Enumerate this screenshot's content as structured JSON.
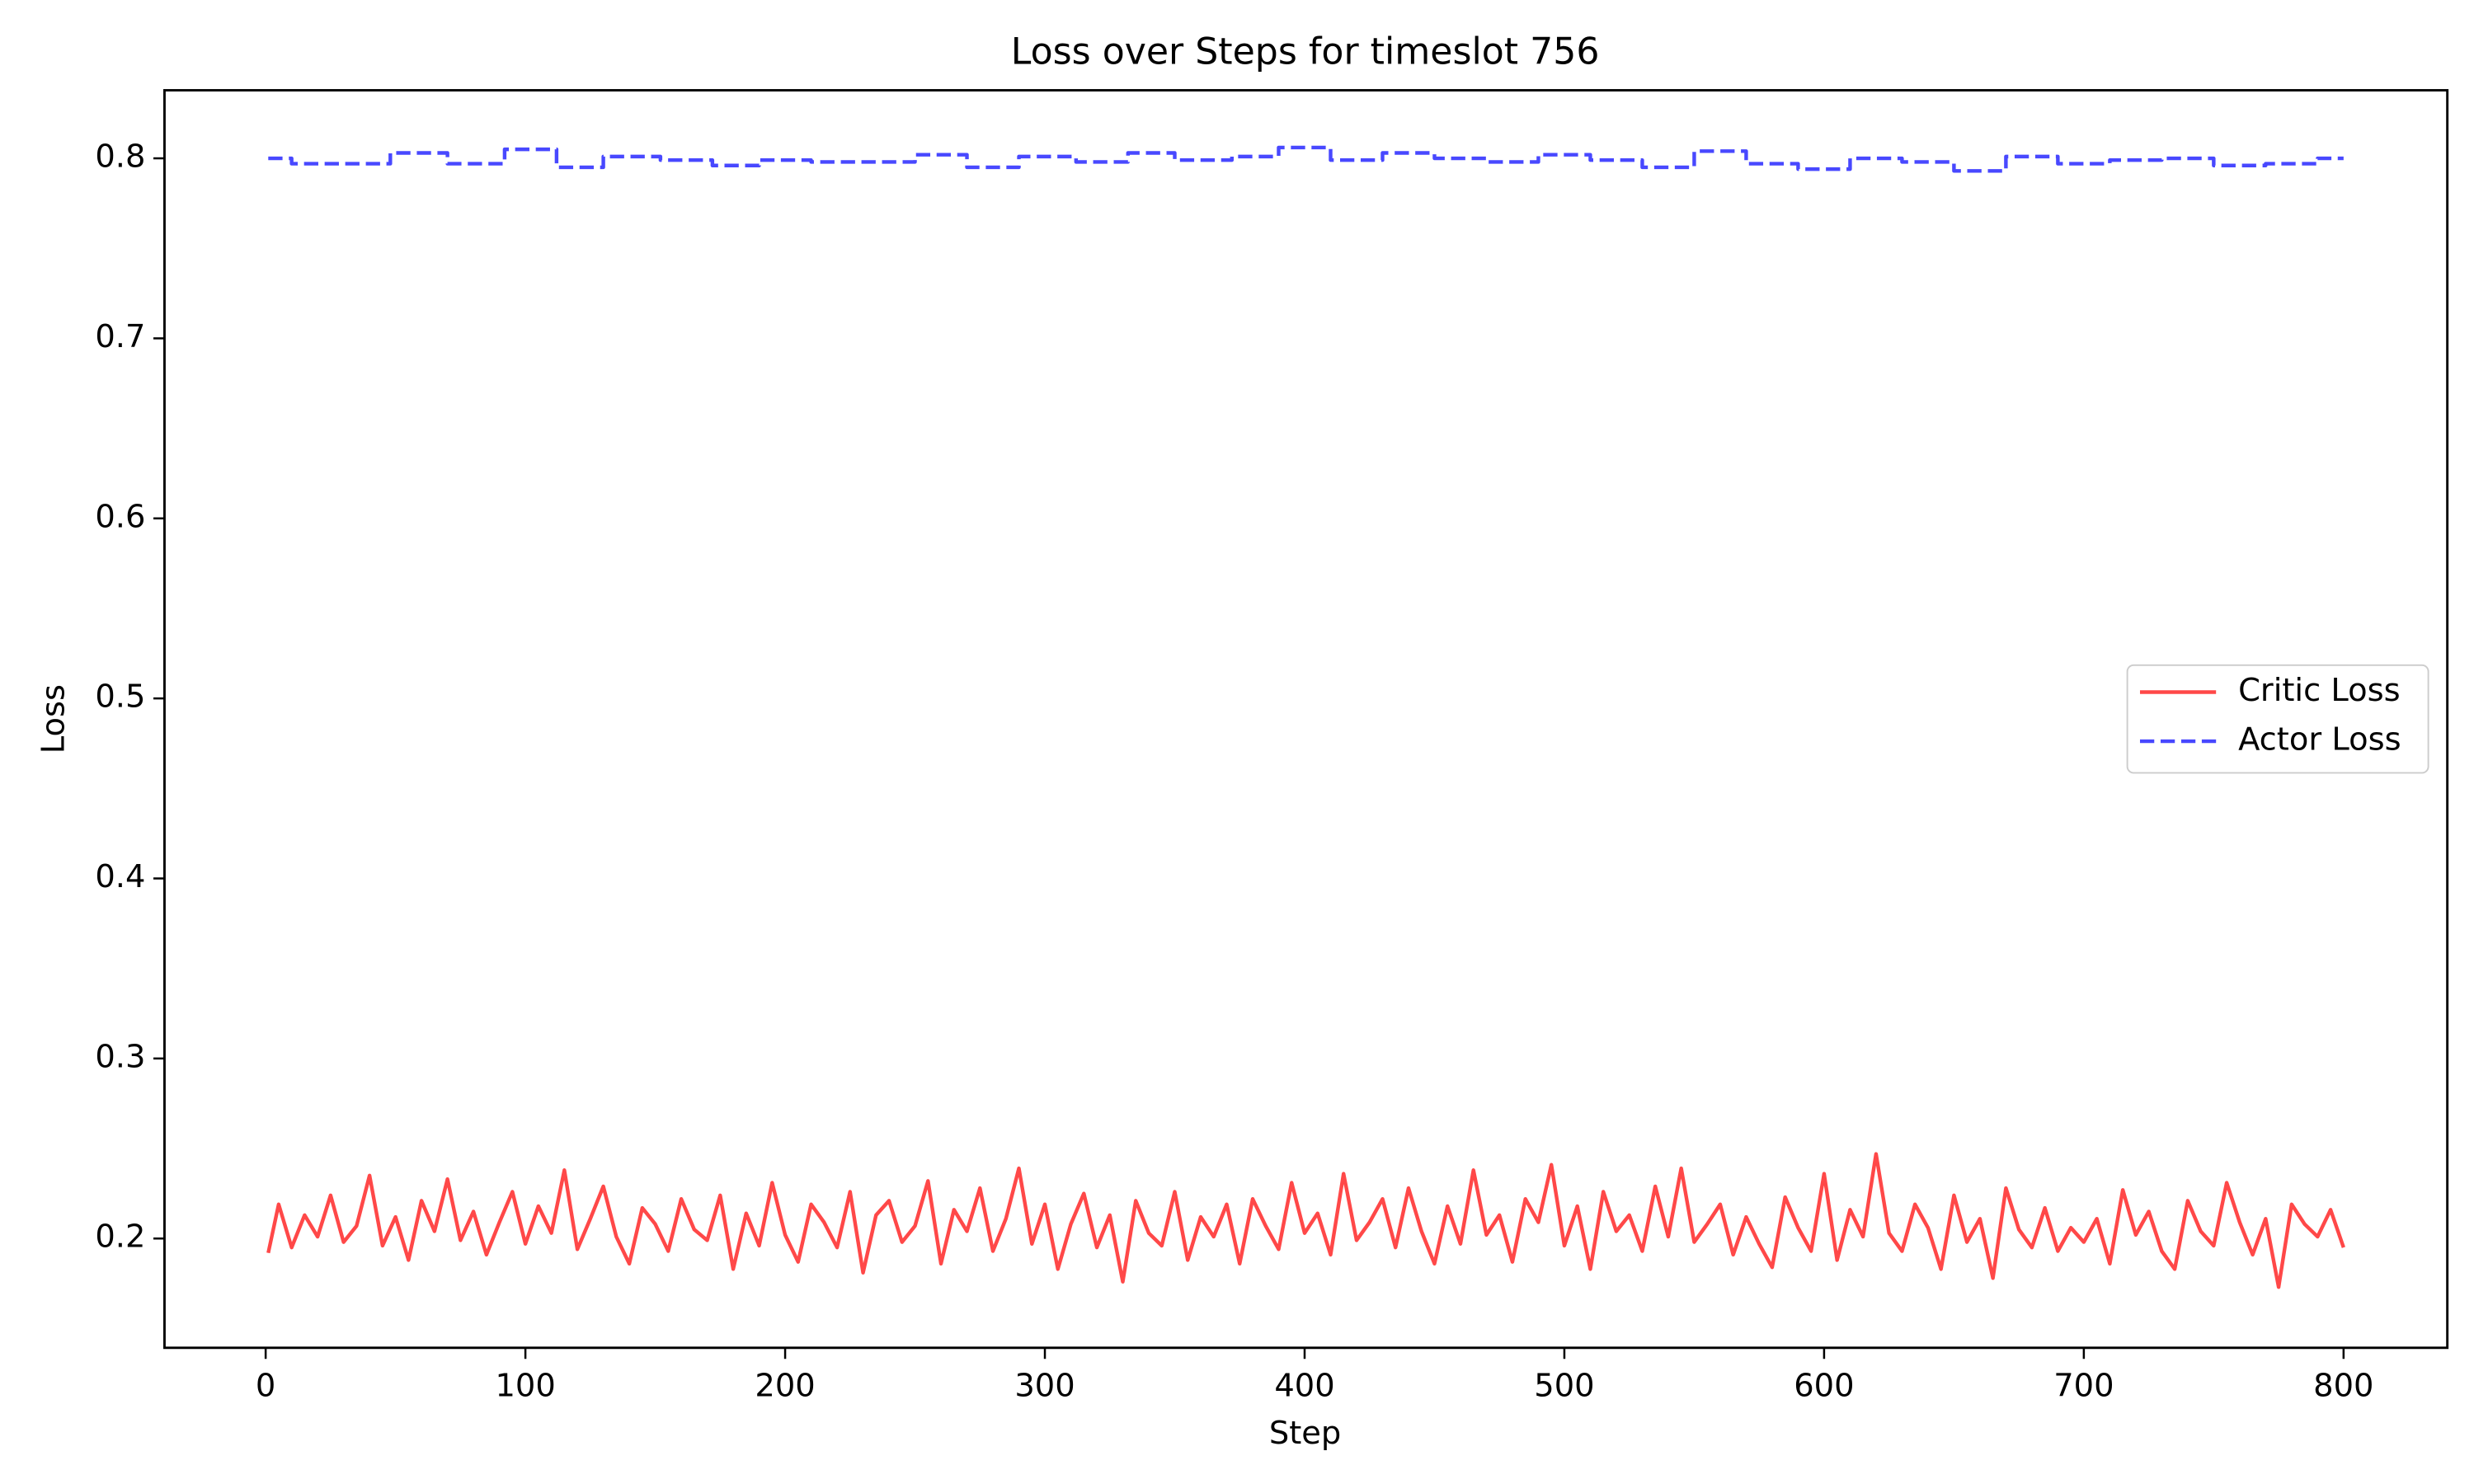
{
  "chart_data": {
    "type": "line",
    "title": "Loss over Steps for timeslot 756",
    "xlabel": "Step",
    "ylabel": "Loss",
    "xlim": [
      -38.95,
      839.95
    ],
    "ylim": [
      0.1393,
      0.8378
    ],
    "xticks": [
      0,
      100,
      200,
      300,
      400,
      500,
      600,
      700,
      800
    ],
    "yticks": [
      0.2,
      0.3,
      0.4,
      0.5,
      0.6,
      0.7,
      0.8
    ],
    "legend": "center right",
    "series": [
      {
        "name": "Critic Loss",
        "color": "#ff4848",
        "style": "solid",
        "x": [
          1,
          5,
          10,
          15,
          20,
          25,
          30,
          35,
          40,
          45,
          50,
          55,
          60,
          65,
          70,
          75,
          80,
          85,
          90,
          95,
          100,
          105,
          110,
          115,
          120,
          125,
          130,
          135,
          140,
          145,
          150,
          155,
          160,
          165,
          170,
          175,
          180,
          185,
          190,
          195,
          200,
          205,
          210,
          215,
          220,
          225,
          230,
          235,
          240,
          245,
          250,
          255,
          260,
          265,
          270,
          275,
          280,
          285,
          290,
          295,
          300,
          305,
          310,
          315,
          320,
          325,
          330,
          335,
          340,
          345,
          350,
          355,
          360,
          365,
          370,
          375,
          380,
          385,
          390,
          395,
          400,
          405,
          410,
          415,
          420,
          425,
          430,
          435,
          440,
          445,
          450,
          455,
          460,
          465,
          470,
          475,
          480,
          485,
          490,
          495,
          500,
          505,
          510,
          515,
          520,
          525,
          530,
          535,
          540,
          545,
          550,
          555,
          560,
          565,
          570,
          575,
          580,
          585,
          590,
          595,
          600,
          605,
          610,
          615,
          620,
          625,
          630,
          635,
          640,
          645,
          650,
          655,
          660,
          665,
          670,
          675,
          680,
          685,
          690,
          695,
          700,
          705,
          710,
          715,
          720,
          725,
          730,
          735,
          740,
          745,
          750,
          755,
          760,
          765,
          770,
          775,
          780,
          785,
          790,
          795,
          800
        ],
        "values": [
          0.192,
          0.219,
          0.195,
          0.213,
          0.201,
          0.224,
          0.198,
          0.207,
          0.235,
          0.196,
          0.212,
          0.188,
          0.221,
          0.204,
          0.233,
          0.199,
          0.215,
          0.191,
          0.209,
          0.226,
          0.197,
          0.218,
          0.203,
          0.238,
          0.194,
          0.211,
          0.229,
          0.201,
          0.186,
          0.217,
          0.208,
          0.193,
          0.222,
          0.205,
          0.199,
          0.224,
          0.183,
          0.214,
          0.196,
          0.231,
          0.202,
          0.187,
          0.219,
          0.209,
          0.195,
          0.226,
          0.181,
          0.213,
          0.221,
          0.198,
          0.207,
          0.232,
          0.186,
          0.216,
          0.204,
          0.228,
          0.193,
          0.211,
          0.239,
          0.197,
          0.219,
          0.183,
          0.208,
          0.225,
          0.195,
          0.213,
          0.176,
          0.221,
          0.203,
          0.196,
          0.226,
          0.188,
          0.212,
          0.201,
          0.219,
          0.186,
          0.222,
          0.207,
          0.194,
          0.231,
          0.203,
          0.214,
          0.191,
          0.236,
          0.199,
          0.209,
          0.222,
          0.195,
          0.228,
          0.204,
          0.186,
          0.218,
          0.197,
          0.238,
          0.202,
          0.213,
          0.187,
          0.222,
          0.209,
          0.241,
          0.196,
          0.218,
          0.183,
          0.226,
          0.204,
          0.213,
          0.193,
          0.229,
          0.201,
          0.239,
          0.198,
          0.208,
          0.219,
          0.191,
          0.212,
          0.197,
          0.184,
          0.223,
          0.206,
          0.193,
          0.236,
          0.188,
          0.216,
          0.201,
          0.247,
          0.203,
          0.193,
          0.219,
          0.206,
          0.183,
          0.224,
          0.198,
          0.211,
          0.178,
          0.228,
          0.205,
          0.195,
          0.217,
          0.193,
          0.206,
          0.198,
          0.211,
          0.186,
          0.227,
          0.202,
          0.215,
          0.193,
          0.183,
          0.221,
          0.204,
          0.196,
          0.231,
          0.209,
          0.191,
          0.211,
          0.173,
          0.219,
          0.208,
          0.201,
          0.216,
          0.195
        ]
      },
      {
        "name": "Actor Loss",
        "color": "#4848ff",
        "style": "dashed",
        "x": [
          1,
          10,
          10,
          48,
          48,
          70,
          70,
          92,
          92,
          112,
          112,
          130,
          130,
          152,
          152,
          172,
          172,
          190,
          190,
          210,
          210,
          250,
          250,
          270,
          270,
          290,
          290,
          312,
          312,
          332,
          332,
          350,
          350,
          372,
          372,
          390,
          390,
          410,
          410,
          430,
          430,
          450,
          450,
          470,
          470,
          490,
          490,
          510,
          510,
          530,
          530,
          550,
          550,
          570,
          570,
          590,
          590,
          610,
          610,
          630,
          630,
          650,
          650,
          670,
          670,
          690,
          690,
          710,
          710,
          730,
          730,
          750,
          750,
          770,
          770,
          790,
          790,
          800
        ],
        "values": [
          0.8,
          0.8,
          0.797,
          0.797,
          0.803,
          0.803,
          0.797,
          0.797,
          0.805,
          0.805,
          0.795,
          0.795,
          0.801,
          0.801,
          0.799,
          0.799,
          0.796,
          0.796,
          0.799,
          0.799,
          0.798,
          0.798,
          0.802,
          0.802,
          0.795,
          0.795,
          0.801,
          0.801,
          0.798,
          0.798,
          0.803,
          0.803,
          0.799,
          0.799,
          0.801,
          0.801,
          0.806,
          0.806,
          0.799,
          0.799,
          0.803,
          0.803,
          0.8,
          0.8,
          0.798,
          0.798,
          0.802,
          0.802,
          0.799,
          0.799,
          0.795,
          0.795,
          0.804,
          0.804,
          0.797,
          0.797,
          0.794,
          0.794,
          0.8,
          0.8,
          0.798,
          0.798,
          0.793,
          0.793,
          0.801,
          0.801,
          0.797,
          0.797,
          0.799,
          0.799,
          0.8,
          0.8,
          0.796,
          0.796,
          0.797,
          0.797,
          0.8,
          0.8
        ]
      }
    ]
  }
}
